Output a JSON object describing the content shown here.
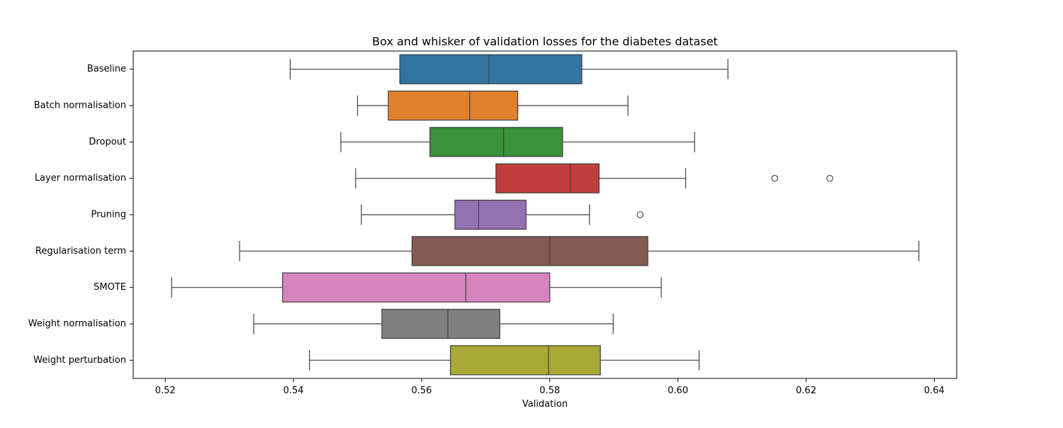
{
  "chart_data": {
    "type": "box",
    "orientation": "horizontal",
    "title": "Box and whisker of validation losses for the diabetes dataset",
    "xlabel": "Validation",
    "ylabel": "",
    "xlim": [
      0.515,
      0.6435
    ],
    "xticks": [
      0.52,
      0.54,
      0.56,
      0.58,
      0.6,
      0.62,
      0.64
    ],
    "xtick_labels": [
      "0.52",
      "0.54",
      "0.56",
      "0.58",
      "0.60",
      "0.62",
      "0.64"
    ],
    "grid": false,
    "legend": null,
    "categories": [
      "Baseline",
      "Batch normalisation",
      "Dropout",
      "Layer normalisation",
      "Pruning",
      "Regularisation term",
      "SMOTE",
      "Weight normalisation",
      "Weight perturbation"
    ],
    "boxes": [
      {
        "category": "Baseline",
        "whisker_low": 0.5395,
        "q1": 0.5566,
        "median": 0.5705,
        "q3": 0.585,
        "whisker_high": 0.6078,
        "outliers": [],
        "color": "#3274a1"
      },
      {
        "category": "Batch normalisation",
        "whisker_low": 0.55,
        "q1": 0.5548,
        "median": 0.5675,
        "q3": 0.575,
        "whisker_high": 0.5922,
        "outliers": [],
        "color": "#e1812c"
      },
      {
        "category": "Dropout",
        "whisker_low": 0.5474,
        "q1": 0.5613,
        "median": 0.5728,
        "q3": 0.582,
        "whisker_high": 0.6026,
        "outliers": [],
        "color": "#3a923a"
      },
      {
        "category": "Layer normalisation",
        "whisker_low": 0.5497,
        "q1": 0.5716,
        "median": 0.5832,
        "q3": 0.5877,
        "whisker_high": 0.6012,
        "outliers": [
          0.6151,
          0.6237
        ],
        "color": "#c03d3e"
      },
      {
        "category": "Pruning",
        "whisker_low": 0.5506,
        "q1": 0.5652,
        "median": 0.5689,
        "q3": 0.5763,
        "whisker_high": 0.5862,
        "outliers": [
          0.5941
        ],
        "color": "#9372b2"
      },
      {
        "category": "Regularisation term",
        "whisker_low": 0.5316,
        "q1": 0.5585,
        "median": 0.58,
        "q3": 0.5953,
        "whisker_high": 0.6376,
        "outliers": [],
        "color": "#845b53"
      },
      {
        "category": "SMOTE",
        "whisker_low": 0.521,
        "q1": 0.5383,
        "median": 0.5669,
        "q3": 0.58,
        "whisker_high": 0.5974,
        "outliers": [],
        "color": "#d684bd"
      },
      {
        "category": "Weight normalisation",
        "whisker_low": 0.5338,
        "q1": 0.5538,
        "median": 0.5641,
        "q3": 0.5722,
        "whisker_high": 0.5899,
        "outliers": [],
        "color": "#7f7f7f"
      },
      {
        "category": "Weight perturbation",
        "whisker_low": 0.5425,
        "q1": 0.5645,
        "median": 0.5798,
        "q3": 0.5879,
        "whisker_high": 0.6033,
        "outliers": [],
        "color": "#a9aa35"
      }
    ]
  }
}
